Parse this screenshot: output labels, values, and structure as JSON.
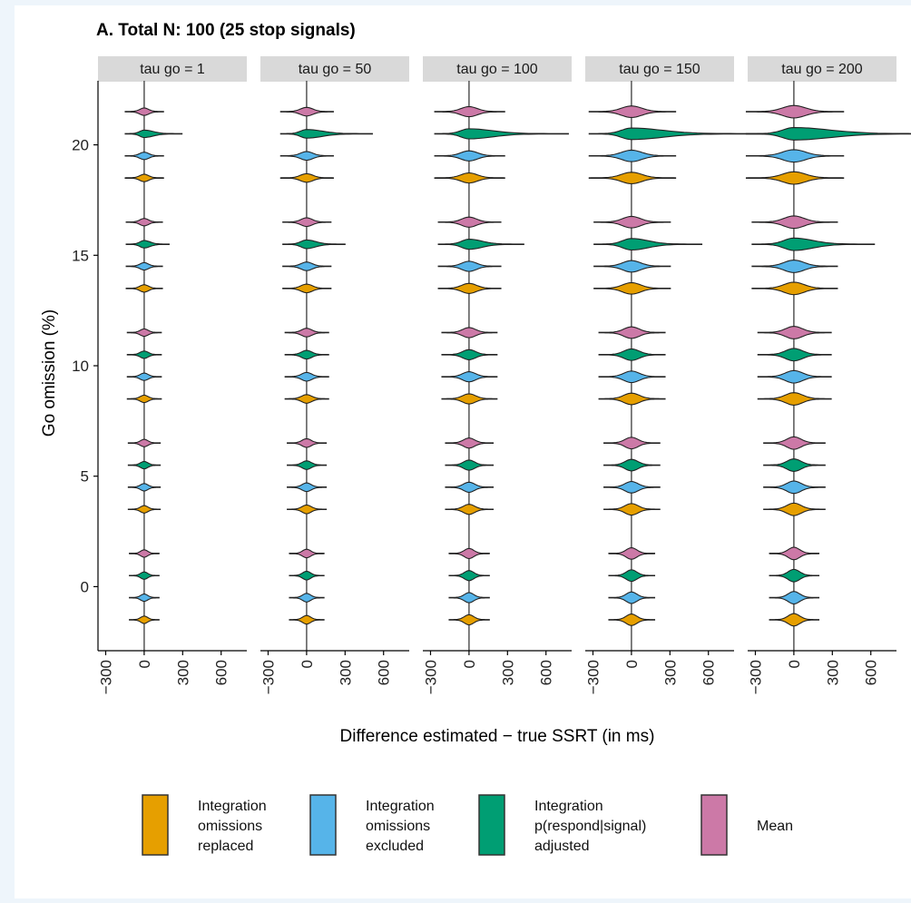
{
  "chart_data": {
    "type": "violin",
    "title": "A. Total N: 100 (25 stop signals)",
    "xlabel": "Difference estimated − true SSRT (in ms)",
    "ylabel": "Go omission (%)",
    "x_ticks": [
      -300,
      0,
      300,
      600
    ],
    "x_tick_labels": [
      "−300",
      "0",
      "300",
      "600"
    ],
    "xlim": [
      -360,
      800
    ],
    "y_ticks": [
      0,
      5,
      10,
      15,
      20
    ],
    "y_tick_labels": [
      "0",
      "5",
      "10",
      "15",
      "20"
    ],
    "ylim": [
      -2.9,
      22.9
    ],
    "reference_line_x": 0,
    "panels": [
      {
        "label": "tau go = 1",
        "scale": 0.18
      },
      {
        "label": "tau go = 50",
        "scale": 0.38
      },
      {
        "label": "tau go = 100",
        "scale": 0.62
      },
      {
        "label": "tau go = 150",
        "scale": 0.85
      },
      {
        "label": "tau go = 200",
        "scale": 1.0
      }
    ],
    "go_omission_levels": [
      0,
      5,
      10,
      15,
      20
    ],
    "series": [
      {
        "name": "Integration omissions replaced",
        "color": "#E69F00",
        "y_offset": -1.5
      },
      {
        "name": "Integration omissions excluded",
        "color": "#56B4E9",
        "y_offset": -0.5
      },
      {
        "name": "Integration p(respond|signal) adjusted",
        "color": "#009E73",
        "y_offset": 0.5
      },
      {
        "name": "Mean",
        "color": "#CC79A7",
        "y_offset": 1.5
      }
    ],
    "legend": {
      "position": "bottom",
      "items": [
        {
          "line1": "Integration",
          "line2": "omissions",
          "line3": "replaced"
        },
        {
          "line1": "Integration",
          "line2": "omissions",
          "line3": "excluded"
        },
        {
          "line1": "Integration",
          "line2": "p(respond|signal)",
          "line3": "adjusted"
        },
        {
          "line1": "Mean",
          "line2": "",
          "line3": ""
        }
      ]
    }
  }
}
